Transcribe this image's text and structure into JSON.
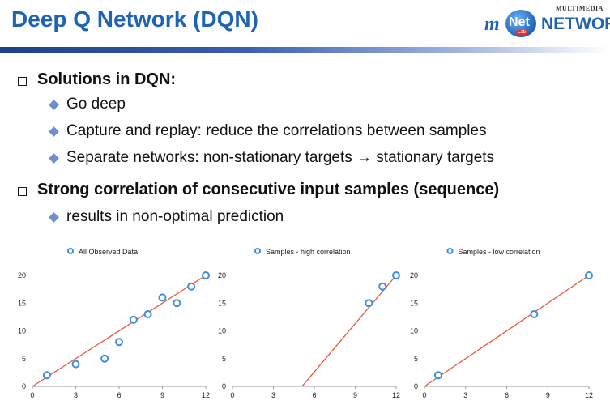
{
  "slide": {
    "title": "Deep Q Network (DQN)",
    "logo": {
      "small": "MULTIMEDIA",
      "main": "NETWORK",
      "net": "Net",
      "lab": "Lab",
      "m": "m"
    },
    "accent_color": "#1f63b5"
  },
  "bullets": [
    {
      "text": "Solutions in DQN:",
      "sub": [
        "Go deep",
        "Capture and replay: reduce the correlations between samples",
        "Separate networks: non-stationary targets → stationary targets"
      ]
    },
    {
      "text": "Strong correlation of consecutive input samples (sequence)",
      "sub": [
        "results in non-optimal prediction"
      ]
    }
  ],
  "chart_data": [
    {
      "type": "scatter",
      "legend": "All Observed Data",
      "x": [
        1,
        3,
        5,
        6,
        7,
        8,
        9,
        10,
        11,
        12
      ],
      "y": [
        2,
        4,
        5,
        8,
        12,
        13,
        16,
        15,
        18,
        20
      ],
      "fit_line": {
        "from": [
          0,
          0
        ],
        "to": [
          12,
          20
        ]
      },
      "xticks": [
        "0",
        "3",
        "6",
        "9",
        "12"
      ],
      "yticks": [
        "0",
        "5",
        "10",
        "15",
        "20"
      ],
      "xlim": [
        0,
        12
      ],
      "ylim": [
        0,
        20
      ]
    },
    {
      "type": "scatter",
      "legend": "Samples - high correlation",
      "x": [
        10,
        11,
        12
      ],
      "y": [
        15,
        18,
        20
      ],
      "fit_line": {
        "from": [
          5.1,
          0
        ],
        "to": [
          12,
          20
        ]
      },
      "xticks": [
        "0",
        "3",
        "6",
        "9",
        "12"
      ],
      "yticks": [
        "0",
        "5",
        "10",
        "15",
        "20"
      ],
      "xlim": [
        0,
        12
      ],
      "ylim": [
        0,
        20
      ]
    },
    {
      "type": "scatter",
      "legend": "Samples - low correlation",
      "x": [
        1,
        8,
        12
      ],
      "y": [
        2,
        13,
        20
      ],
      "fit_line": {
        "from": [
          0,
          0
        ],
        "to": [
          12,
          20
        ]
      },
      "xticks": [
        "0",
        "3",
        "6",
        "9",
        "12"
      ],
      "yticks": [
        "0",
        "5",
        "10",
        "15",
        "20"
      ],
      "xlim": [
        0,
        12
      ],
      "ylim": [
        0,
        20
      ]
    }
  ],
  "colors": {
    "point": "#3d8ee0",
    "line": "#e8583a",
    "axis": "#9a9a9a"
  }
}
